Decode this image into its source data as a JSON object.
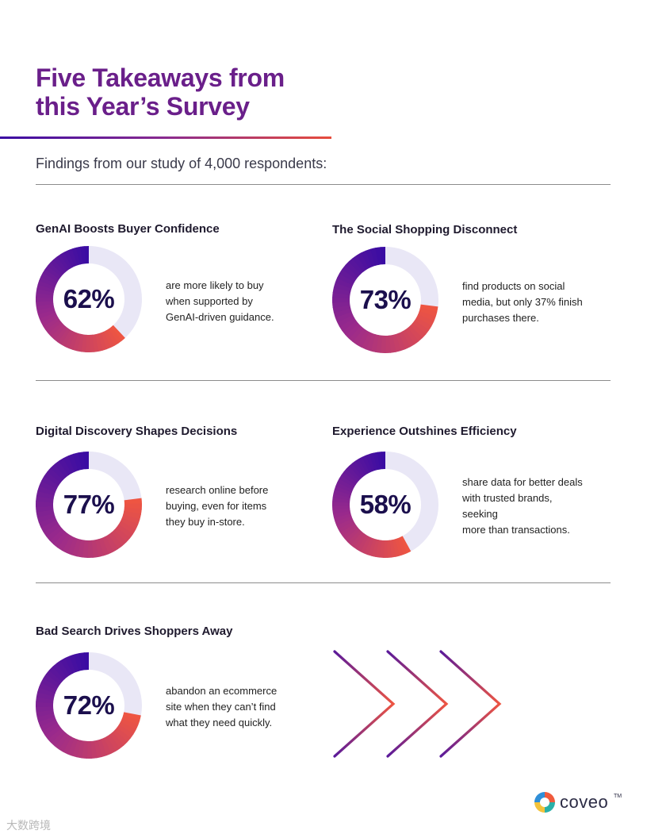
{
  "header": {
    "title_line1": "Five Takeaways from",
    "title_line2": "this Year’s Survey",
    "subtitle": "Findings from our study of 4,000 respondents:"
  },
  "colors": {
    "title_purple": "#6a1f8a",
    "ring_start": "#ee5542",
    "ring_mid": "#9b2a8c",
    "ring_end": "#3a0ca3",
    "ring_track": "#e9e7f6"
  },
  "stats": [
    {
      "title": "GenAI Boosts Buyer Confidence",
      "percent": 62,
      "label": "62%",
      "desc_line1": "are more likely to buy",
      "desc_line2": "when supported by",
      "desc_line3": "GenAI-driven guidance."
    },
    {
      "title": "The Social Shopping Disconnect",
      "percent": 73,
      "label": "73%",
      "desc_line1": "find products on social",
      "desc_line2": "media, but only 37% finish",
      "desc_line3": "purchases there."
    },
    {
      "title": "Digital Discovery Shapes Decisions",
      "percent": 77,
      "label": "77%",
      "desc_line1": "research online before",
      "desc_line2": "buying, even for items",
      "desc_line3": "they buy in-store."
    },
    {
      "title": "Experience Outshines Efficiency",
      "percent": 58,
      "label": "58%",
      "desc_line1": "share data for better deals",
      "desc_line2": "with trusted brands, seeking",
      "desc_line3": "more than transactions."
    },
    {
      "title": "Bad Search Drives Shoppers Away",
      "percent": 72,
      "label": "72%",
      "desc_line1": "abandon an ecommerce",
      "desc_line2": "site when they can’t find",
      "desc_line3": "what they need quickly."
    }
  ],
  "logo": {
    "name": "coveo",
    "tm": "TM"
  },
  "watermark": "大数跨境"
}
